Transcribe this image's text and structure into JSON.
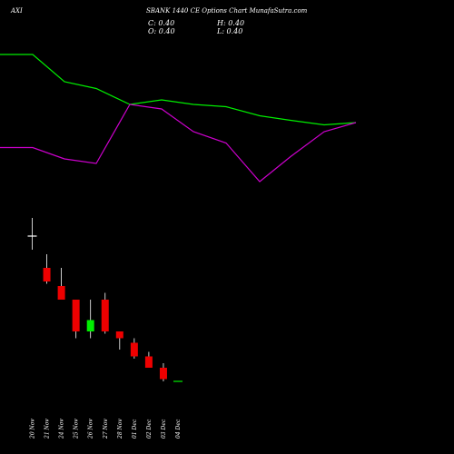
{
  "header": {
    "symbol": "AXI",
    "title": "SBANK 1440  CE Options  Chart MunafaSutra.com"
  },
  "ohlc": {
    "c_label": "C: 0.40",
    "h_label": "H: 0.40",
    "o_label": "O: 0.40",
    "l_label": "L: 0.40"
  },
  "colors": {
    "background": "#000000",
    "ma_green": "#00ee00",
    "ma_purple": "#cc00cc",
    "bull": "#00ee00",
    "bear": "#ee0000",
    "doji": "#ffffff",
    "wick": "#ffffff"
  },
  "chart_data": {
    "type": "candlestick",
    "dates": [
      "20 Nov",
      "21 Nov",
      "24 Nov",
      "25 Nov",
      "26 Nov",
      "27 Nov",
      "28 Nov",
      "01 Dec",
      "02 Dec",
      "03 Dec",
      "04 Dec"
    ],
    "candles": [
      {
        "open": 3.6,
        "high": 4.0,
        "low": 3.3,
        "close": 3.6
      },
      {
        "open": 2.9,
        "high": 3.2,
        "low": 2.55,
        "close": 2.6
      },
      {
        "open": 2.5,
        "high": 2.9,
        "low": 2.2,
        "close": 2.2
      },
      {
        "open": 2.2,
        "high": 2.2,
        "low": 1.35,
        "close": 1.5
      },
      {
        "open": 1.5,
        "high": 2.2,
        "low": 1.35,
        "close": 1.75
      },
      {
        "open": 2.2,
        "high": 2.35,
        "low": 1.45,
        "close": 1.5
      },
      {
        "open": 1.5,
        "high": 1.5,
        "low": 1.1,
        "close": 1.35
      },
      {
        "open": 1.25,
        "high": 1.35,
        "low": 0.9,
        "close": 0.95
      },
      {
        "open": 0.95,
        "high": 1.05,
        "low": 0.7,
        "close": 0.7
      },
      {
        "open": 0.7,
        "high": 0.8,
        "low": 0.4,
        "close": 0.45
      },
      {
        "open": 0.4,
        "high": 0.4,
        "low": 0.4,
        "close": 0.4
      }
    ],
    "ma_green": [
      7.6,
      7.6,
      7.0,
      6.85,
      6.5,
      6.6,
      6.5,
      6.45,
      6.25,
      6.15,
      6.05,
      6.1
    ],
    "ma_purple": [
      5.55,
      5.55,
      5.3,
      5.2,
      6.5,
      6.4,
      5.9,
      5.65,
      4.8,
      5.35,
      5.9,
      6.1
    ],
    "ylim": [
      0,
      8.6
    ]
  }
}
